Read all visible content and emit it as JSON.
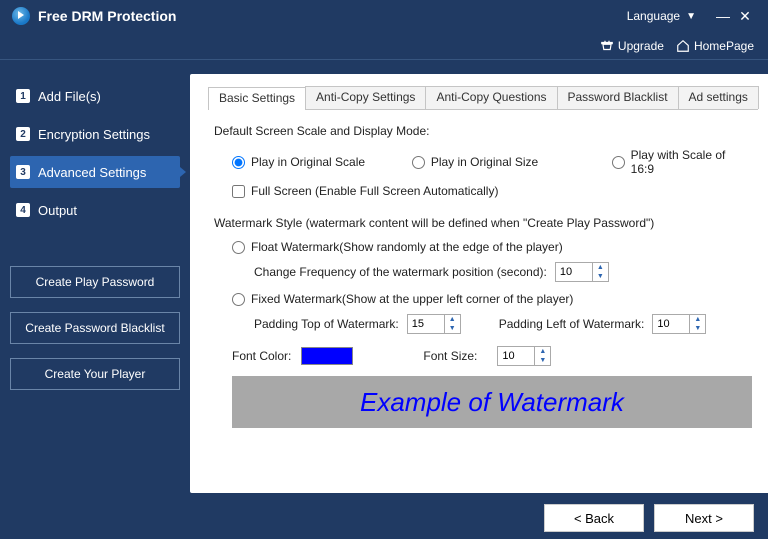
{
  "app": {
    "title": "Free DRM Protection",
    "language_label": "Language",
    "upgrade_label": "Upgrade",
    "homepage_label": "HomePage"
  },
  "sidebar": {
    "steps": [
      {
        "num": "1",
        "label": "Add File(s)",
        "active": false
      },
      {
        "num": "2",
        "label": "Encryption Settings",
        "active": false
      },
      {
        "num": "3",
        "label": "Advanced Settings",
        "active": true
      },
      {
        "num": "4",
        "label": "Output",
        "active": false
      }
    ],
    "actions": [
      "Create Play Password",
      "Create Password Blacklist",
      "Create Your Player"
    ]
  },
  "tabs": [
    {
      "label": "Basic Settings",
      "active": true
    },
    {
      "label": "Anti-Copy Settings",
      "active": false
    },
    {
      "label": "Anti-Copy Questions",
      "active": false
    },
    {
      "label": "Password Blacklist",
      "active": false
    },
    {
      "label": "Ad settings",
      "active": false
    }
  ],
  "basic": {
    "scale_heading": "Default Screen Scale and Display Mode:",
    "scale_options": {
      "original_scale": "Play in Original Scale",
      "original_size": "Play in Original Size",
      "scale_169": "Play with Scale of 16:9",
      "selected": "original_scale"
    },
    "fullscreen_label": "Full Screen (Enable Full Screen Automatically)",
    "fullscreen_checked": false,
    "watermark_heading": "Watermark Style (watermark content will be defined when \"Create Play Password\")",
    "float_label": "Float Watermark(Show randomly at the edge of the player)",
    "float_freq_label": "Change Frequency of the watermark position (second):",
    "float_freq_value": "10",
    "fixed_label": "Fixed Watermark(Show at the upper left corner of the player)",
    "padding_top_label": "Padding Top of Watermark:",
    "padding_top_value": "15",
    "padding_left_label": "Padding Left of Watermark:",
    "padding_left_value": "10",
    "font_color_label": "Font Color:",
    "font_color_value": "#0000ff",
    "font_size_label": "Font Size:",
    "font_size_value": "10",
    "example_text": "Example of Watermark"
  },
  "footer": {
    "back": "< Back",
    "next": "Next >"
  },
  "colors": {
    "header_bg": "#203a63",
    "active_step": "#2d65b0",
    "spinner_arrow": "#2d65b0",
    "example_bg": "#a8a8a8"
  }
}
